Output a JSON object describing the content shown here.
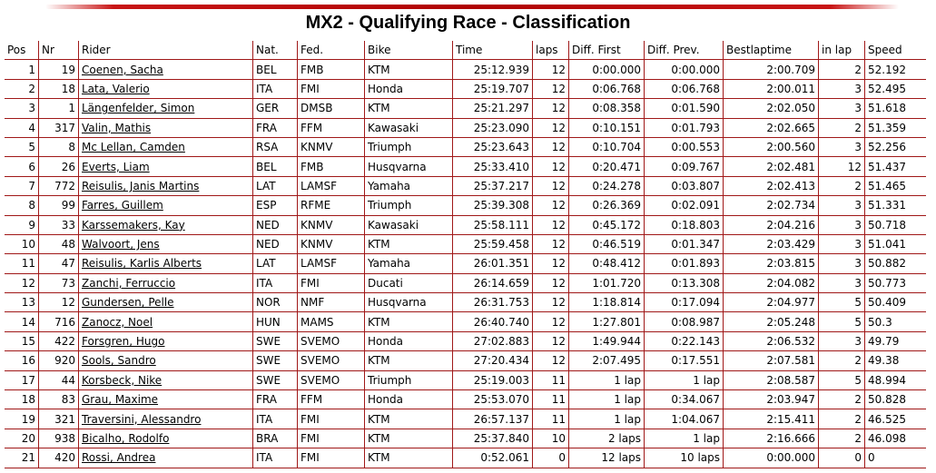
{
  "title": "MX2 - Qualifying Race - Classification",
  "columns": [
    "Pos",
    "Nr",
    "Rider",
    "Nat.",
    "Fed.",
    "Bike",
    "Time",
    "laps",
    "Diff. First",
    "Diff. Prev.",
    "Bestlaptime",
    "in lap",
    "Speed"
  ],
  "rows": [
    [
      "1",
      "19",
      "Coenen, Sacha",
      "BEL",
      "FMB",
      "KTM",
      "25:12.939",
      "12",
      "0:00.000",
      "0:00.000",
      "2:00.709",
      "2",
      "52.192"
    ],
    [
      "2",
      "18",
      "Lata, Valerio",
      "ITA",
      "FMI",
      "Honda",
      "25:19.707",
      "12",
      "0:06.768",
      "0:06.768",
      "2:00.011",
      "3",
      "52.495"
    ],
    [
      "3",
      "1",
      "Längenfelder, Simon",
      "GER",
      "DMSB",
      "KTM",
      "25:21.297",
      "12",
      "0:08.358",
      "0:01.590",
      "2:02.050",
      "3",
      "51.618"
    ],
    [
      "4",
      "317",
      "Valin, Mathis",
      "FRA",
      "FFM",
      "Kawasaki",
      "25:23.090",
      "12",
      "0:10.151",
      "0:01.793",
      "2:02.665",
      "2",
      "51.359"
    ],
    [
      "5",
      "8",
      "Mc Lellan, Camden",
      "RSA",
      "KNMV",
      "Triumph",
      "25:23.643",
      "12",
      "0:10.704",
      "0:00.553",
      "2:00.560",
      "3",
      "52.256"
    ],
    [
      "6",
      "26",
      "Everts, Liam",
      "BEL",
      "FMB",
      "Husqvarna",
      "25:33.410",
      "12",
      "0:20.471",
      "0:09.767",
      "2:02.481",
      "12",
      "51.437"
    ],
    [
      "7",
      "772",
      "Reisulis, Janis Martins",
      "LAT",
      "LAMSF",
      "Yamaha",
      "25:37.217",
      "12",
      "0:24.278",
      "0:03.807",
      "2:02.413",
      "2",
      "51.465"
    ],
    [
      "8",
      "99",
      "Farres, Guillem",
      "ESP",
      "RFME",
      "Triumph",
      "25:39.308",
      "12",
      "0:26.369",
      "0:02.091",
      "2:02.734",
      "3",
      "51.331"
    ],
    [
      "9",
      "33",
      "Karssemakers, Kay",
      "NED",
      "KNMV",
      "Kawasaki",
      "25:58.111",
      "12",
      "0:45.172",
      "0:18.803",
      "2:04.216",
      "3",
      "50.718"
    ],
    [
      "10",
      "48",
      "Walvoort, Jens",
      "NED",
      "KNMV",
      "KTM",
      "25:59.458",
      "12",
      "0:46.519",
      "0:01.347",
      "2:03.429",
      "3",
      "51.041"
    ],
    [
      "11",
      "47",
      "Reisulis, Karlis Alberts",
      "LAT",
      "LAMSF",
      "Yamaha",
      "26:01.351",
      "12",
      "0:48.412",
      "0:01.893",
      "2:03.815",
      "3",
      "50.882"
    ],
    [
      "12",
      "73",
      "Zanchi, Ferruccio",
      "ITA",
      "FMI",
      "Ducati",
      "26:14.659",
      "12",
      "1:01.720",
      "0:13.308",
      "2:04.082",
      "3",
      "50.773"
    ],
    [
      "13",
      "12",
      "Gundersen, Pelle",
      "NOR",
      "NMF",
      "Husqvarna",
      "26:31.753",
      "12",
      "1:18.814",
      "0:17.094",
      "2:04.977",
      "5",
      "50.409"
    ],
    [
      "14",
      "716",
      "Zanocz, Noel",
      "HUN",
      "MAMS",
      "KTM",
      "26:40.740",
      "12",
      "1:27.801",
      "0:08.987",
      "2:05.248",
      "5",
      "50.3"
    ],
    [
      "15",
      "422",
      "Forsgren, Hugo",
      "SWE",
      "SVEMO",
      "Honda",
      "27:02.883",
      "12",
      "1:49.944",
      "0:22.143",
      "2:06.532",
      "3",
      "49.79"
    ],
    [
      "16",
      "920",
      "Sools, Sandro",
      "SWE",
      "SVEMO",
      "KTM",
      "27:20.434",
      "12",
      "2:07.495",
      "0:17.551",
      "2:07.581",
      "2",
      "49.38"
    ],
    [
      "17",
      "44",
      "Korsbeck, Nike",
      "SWE",
      "SVEMO",
      "Triumph",
      "25:19.003",
      "11",
      "1 lap",
      "1 lap",
      "2:08.587",
      "5",
      "48.994"
    ],
    [
      "18",
      "83",
      "Grau, Maxime",
      "FRA",
      "FFM",
      "Honda",
      "25:53.070",
      "11",
      "1 lap",
      "0:34.067",
      "2:03.947",
      "2",
      "50.828"
    ],
    [
      "19",
      "321",
      "Traversini, Alessandro",
      "ITA",
      "FMI",
      "KTM",
      "26:57.137",
      "11",
      "1 lap",
      "1:04.067",
      "2:15.411",
      "2",
      "46.525"
    ],
    [
      "20",
      "938",
      "Bicalho, Rodolfo",
      "BRA",
      "FMI",
      "KTM",
      "25:37.840",
      "10",
      "2 laps",
      "1 lap",
      "2:16.666",
      "2",
      "46.098"
    ],
    [
      "21",
      "420",
      "Rossi, Andrea",
      "ITA",
      "FMI",
      "KTM",
      "0:52.061",
      "0",
      "12 laps",
      "10 laps",
      "0:00.000",
      "0",
      "0"
    ]
  ],
  "colors": {
    "accent": "#b00000",
    "border": "#a01818"
  }
}
